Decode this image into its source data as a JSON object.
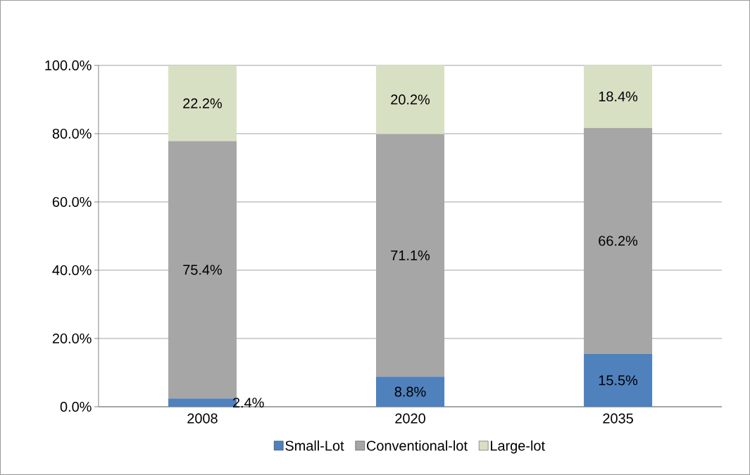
{
  "chart_data": {
    "type": "bar",
    "stacked": true,
    "categories": [
      "2008",
      "2020",
      "2035"
    ],
    "series": [
      {
        "name": "Small-Lot",
        "color": "#4f81bd",
        "values": [
          2.4,
          8.8,
          15.5
        ],
        "value_labels": [
          "2.4%",
          "8.8%",
          "15.5%"
        ]
      },
      {
        "name": "Conventional-lot",
        "color": "#a6a6a6",
        "values": [
          75.4,
          71.1,
          66.2
        ],
        "value_labels": [
          "75.4%",
          "71.1%",
          "66.2%"
        ]
      },
      {
        "name": "Large-lot",
        "color": "#d8e0c4",
        "values": [
          22.2,
          20.2,
          18.4
        ],
        "value_labels": [
          "22.2%",
          "20.2%",
          "18.4%"
        ]
      }
    ],
    "ylim": [
      0,
      100
    ],
    "yticks": [
      {
        "value": 0,
        "label": "0.0%"
      },
      {
        "value": 20,
        "label": "20.0%"
      },
      {
        "value": 40,
        "label": "40.0%"
      },
      {
        "value": 60,
        "label": "60.0%"
      },
      {
        "value": 80,
        "label": "80.0%"
      },
      {
        "value": 100,
        "label": "100.0%"
      }
    ],
    "grid": "y",
    "legend": "bottom"
  }
}
